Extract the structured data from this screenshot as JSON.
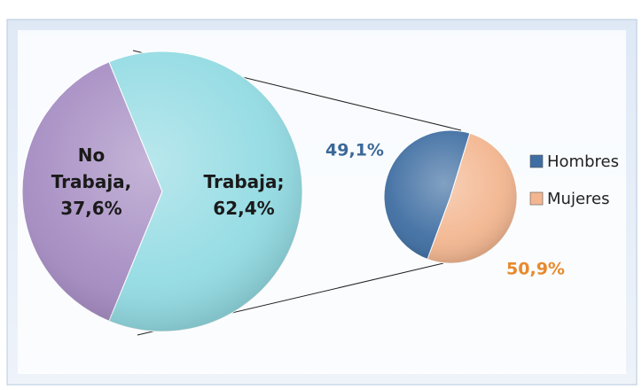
{
  "chart_data": {
    "type": "pie-of-pie",
    "pies": [
      {
        "categories": [
          "No Trabaja",
          "Trabaja"
        ],
        "values": [
          37.6,
          62.4
        ],
        "value_labels": [
          "No Trabaja, 37,6%",
          "Trabaja; 62,4%"
        ],
        "colors": [
          "#a58cc2",
          "#93dbe3"
        ]
      },
      {
        "categories": [
          "Hombres",
          "Mujeres"
        ],
        "values": [
          49.1,
          50.9
        ],
        "value_labels": [
          "49,1%",
          "50,9%"
        ],
        "colors": [
          "#3f6ea2",
          "#f3b690"
        ],
        "label_colors": [
          "#3b6898",
          "#e8892c"
        ]
      }
    ],
    "legend": "right"
  }
}
